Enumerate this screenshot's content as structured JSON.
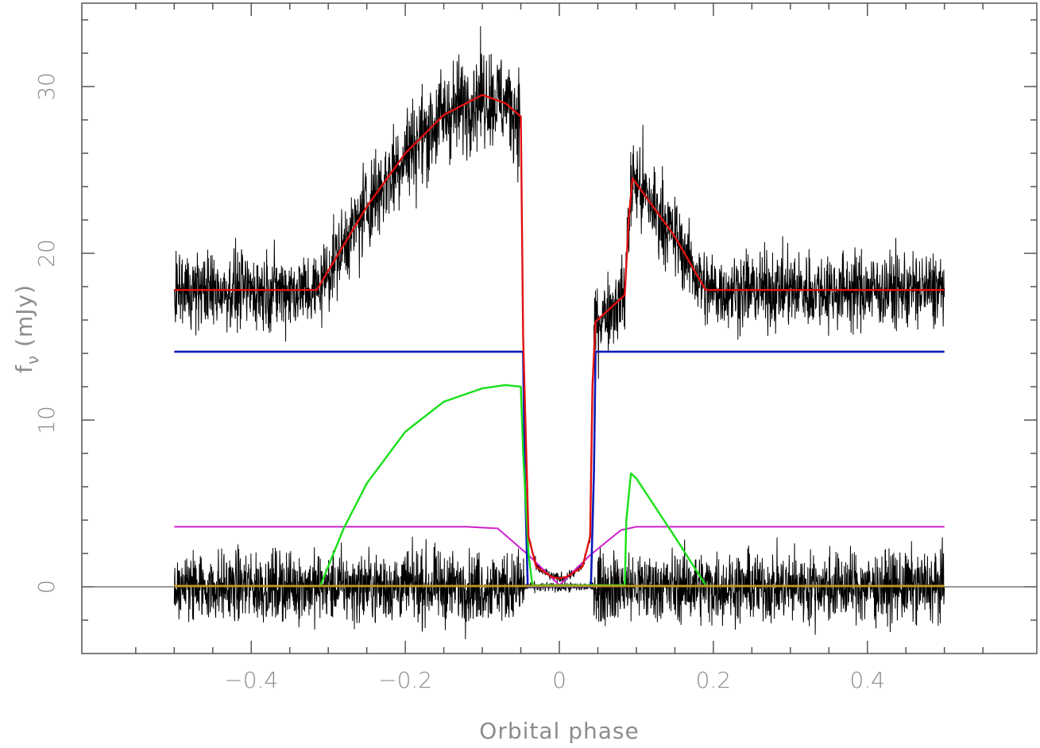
{
  "chart_data": {
    "type": "line",
    "xlabel": "Orbital phase",
    "ylabel_main": "f",
    "ylabel_sub": "ν",
    "ylabel_unit": "(mJy)",
    "xlim": [
      -0.62,
      0.62
    ],
    "ylim": [
      -4,
      35
    ],
    "x_ticks": [
      -0.4,
      -0.2,
      0,
      0.2,
      0.4
    ],
    "x_tick_labels": [
      "−0.4",
      "−0.2",
      "0",
      "0.2",
      "0.4"
    ],
    "y_ticks": [
      0,
      10,
      20,
      30
    ],
    "y_tick_labels": [
      "0",
      "10",
      "20",
      "30"
    ],
    "grid": false,
    "zero_line": true,
    "colors": {
      "data": "#000000",
      "model": "#e01010",
      "blue": "#0a1ab8",
      "green": "#18e018",
      "magenta": "#d020d0",
      "baseline": "#c87818",
      "baseline_inner": "#a0c030"
    },
    "series": [
      {
        "key": "observed_total",
        "x": [
          -0.5,
          -0.315,
          -0.25,
          -0.2,
          -0.15,
          -0.1,
          -0.07,
          -0.05,
          -0.047,
          -0.04,
          -0.03,
          -0.01,
          0,
          0.01,
          0.03,
          0.04,
          0.043,
          0.047,
          0.085,
          0.09,
          0.095,
          0.15,
          0.19,
          0.5
        ],
        "y": [
          17.8,
          17.8,
          22.8,
          26.0,
          28.3,
          29.5,
          29.0,
          28.2,
          15.0,
          3.0,
          1.2,
          0.6,
          0.5,
          0.6,
          1.2,
          3.0,
          12.0,
          15.9,
          17.5,
          22.0,
          24.5,
          21.0,
          17.8,
          17.8
        ]
      },
      {
        "key": "model_total",
        "x": [
          -0.5,
          -0.315,
          -0.25,
          -0.2,
          -0.15,
          -0.1,
          -0.07,
          -0.05,
          -0.047,
          -0.04,
          -0.03,
          -0.01,
          0,
          0.01,
          0.03,
          0.04,
          0.043,
          0.047,
          0.085,
          0.09,
          0.095,
          0.15,
          0.19,
          0.5
        ],
        "y": [
          17.8,
          17.8,
          22.8,
          26.0,
          28.3,
          29.5,
          29.0,
          28.2,
          15.0,
          3.0,
          1.2,
          0.6,
          0.5,
          0.6,
          1.2,
          3.0,
          12.0,
          15.9,
          17.5,
          22.0,
          24.5,
          21.0,
          17.8,
          17.8
        ]
      },
      {
        "key": "component_blue",
        "x": [
          -0.5,
          -0.047,
          -0.045,
          -0.041,
          0.041,
          0.045,
          0.047,
          0.5
        ],
        "y": [
          14.1,
          14.1,
          7.0,
          0,
          0,
          7.0,
          14.1,
          14.1
        ]
      },
      {
        "key": "component_green",
        "x": [
          -0.31,
          -0.28,
          -0.25,
          -0.2,
          -0.15,
          -0.1,
          -0.07,
          -0.05,
          -0.047,
          -0.04,
          -0.035,
          0.085,
          0.087,
          0.093,
          0.1,
          0.15,
          0.19
        ],
        "y": [
          0.1,
          3.5,
          6.2,
          9.3,
          11.1,
          11.9,
          12.1,
          12.0,
          8.0,
          2.0,
          0.1,
          0.1,
          4.0,
          6.8,
          6.5,
          3.0,
          0.1
        ]
      },
      {
        "key": "component_magenta",
        "x": [
          -0.5,
          -0.12,
          -0.08,
          -0.04,
          0,
          0.04,
          0.08,
          0.1,
          0.5
        ],
        "y": [
          3.6,
          3.6,
          3.5,
          1.9,
          0.1,
          1.9,
          3.4,
          3.6,
          3.6
        ]
      },
      {
        "key": "residuals",
        "x": [
          -0.5,
          0.5
        ],
        "y": [
          0,
          0
        ]
      }
    ]
  }
}
